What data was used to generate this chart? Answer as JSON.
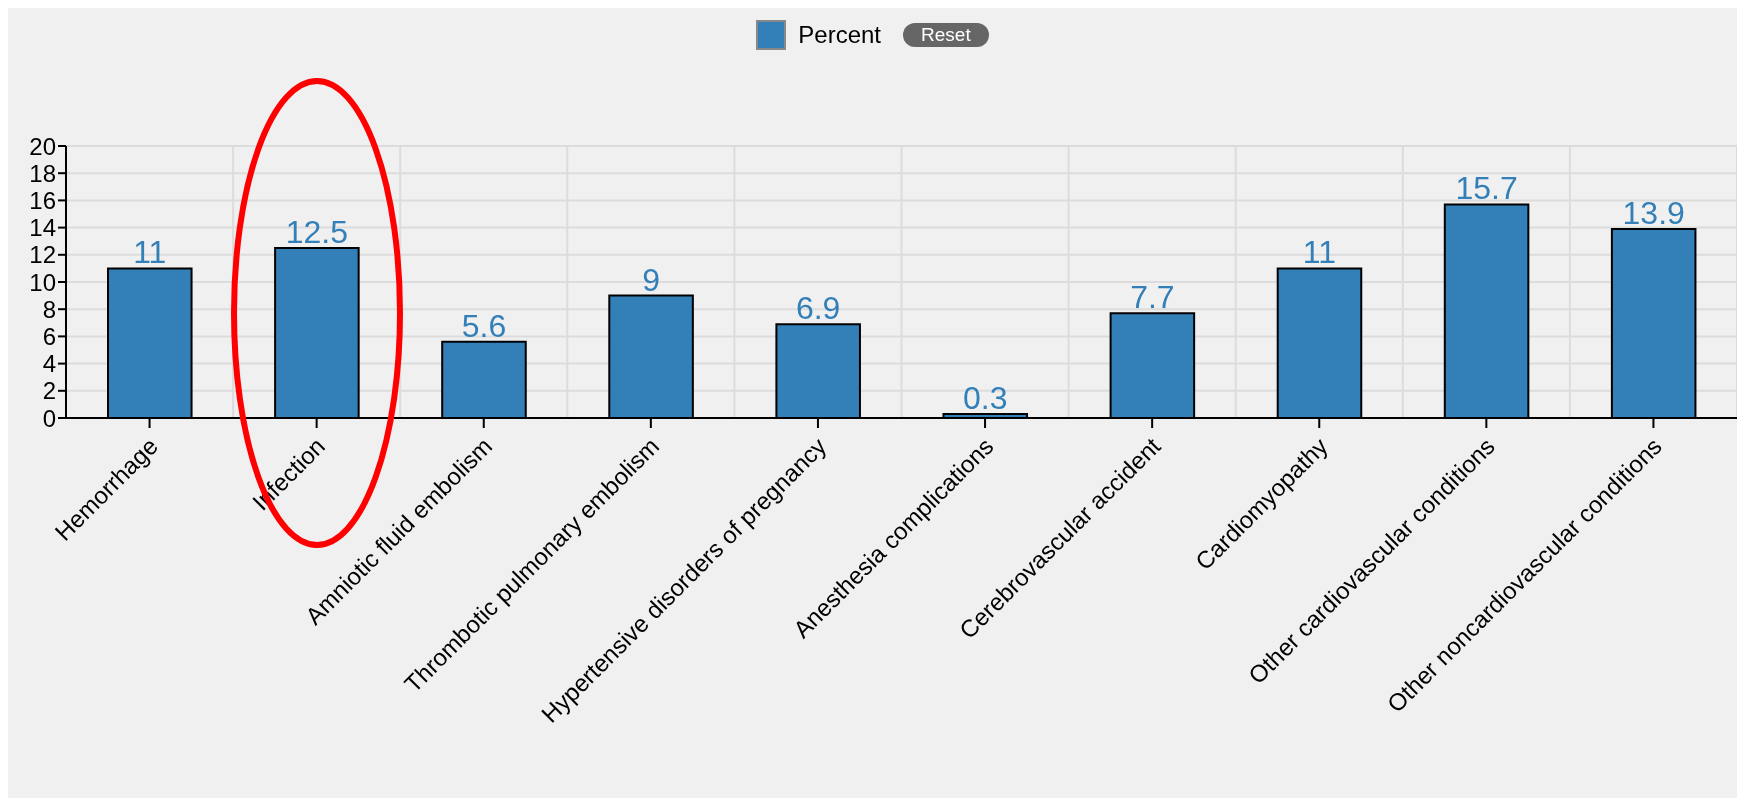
{
  "chart_data": {
    "type": "bar",
    "categories": [
      "Hemorrhage",
      "Infection",
      "Amniotic fluid embolism",
      "Thrombotic pulmonary embolism",
      "Hypertensive disorders of pregnancy",
      "Anesthesia complications",
      "Cerebrovascular accident",
      "Cardiomyopathy",
      "Other cardiovascular conditions",
      "Other noncardiovascular conditions"
    ],
    "series": [
      {
        "name": "Percent",
        "color": "#337fb8",
        "values": [
          11,
          12.5,
          5.6,
          9,
          6.9,
          0.3,
          7.7,
          11,
          15.7,
          13.9
        ]
      }
    ],
    "ylim": [
      0,
      20
    ],
    "yticks": [
      0,
      2,
      4,
      6,
      8,
      10,
      12,
      14,
      16,
      18,
      20
    ],
    "grid": true,
    "legend": "top",
    "data_labels": true,
    "annotations": [
      "Reset"
    ]
  }
}
